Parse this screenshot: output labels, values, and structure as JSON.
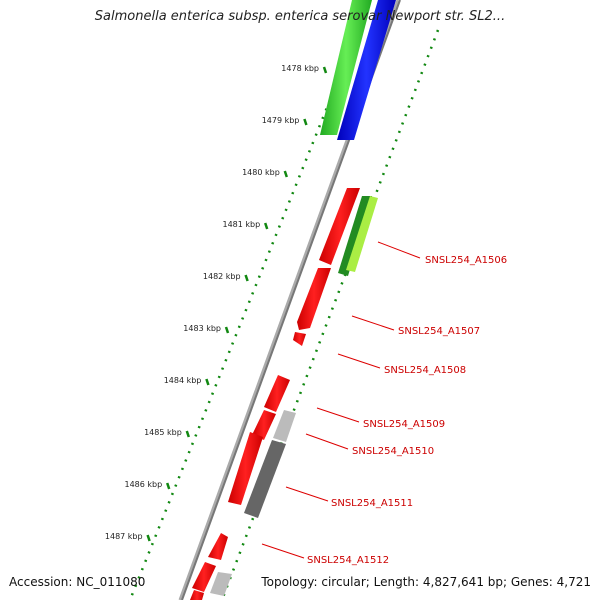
{
  "title": "Salmonella enterica subsp. enterica serovar Newport str. SL2...",
  "footer": {
    "accession": "Accession: NC_011080",
    "summary": "Topology: circular; Length: 4,827,641 bp; Genes: 4,721"
  },
  "colors": {
    "cds_red": "#ee0000",
    "green": "#33cc33",
    "blue": "#0000ee",
    "dark_green": "#228b22",
    "light_green": "#aaee44",
    "gray_light": "#bbbbbb",
    "gray_dark": "#666666",
    "backbone": "#888888",
    "tick_green": "#118811"
  },
  "scale": {
    "unit": "kbp",
    "ticks": [
      {
        "value": 1478,
        "label": "1478 kbp"
      },
      {
        "value": 1479,
        "label": "1479 kbp"
      },
      {
        "value": 1480,
        "label": "1480 kbp"
      },
      {
        "value": 1481,
        "label": "1481 kbp"
      },
      {
        "value": 1482,
        "label": "1482 kbp"
      },
      {
        "value": 1483,
        "label": "1483 kbp"
      },
      {
        "value": 1484,
        "label": "1484 kbp"
      },
      {
        "value": 1485,
        "label": "1485 kbp"
      },
      {
        "value": 1486,
        "label": "1486 kbp"
      },
      {
        "value": 1487,
        "label": "1487 kbp"
      }
    ]
  },
  "gene_labels": [
    {
      "name": "SNSL254_A1506",
      "text": "SNSL254_A1506"
    },
    {
      "name": "SNSL254_A1507",
      "text": "SNSL254_A1507"
    },
    {
      "name": "SNSL254_A1508",
      "text": "SNSL254_A1508"
    },
    {
      "name": "SNSL254_A1509",
      "text": "SNSL254_A1509"
    },
    {
      "name": "SNSL254_A1510",
      "text": "SNSL254_A1510"
    },
    {
      "name": "SNSL254_A1511",
      "text": "SNSL254_A1511"
    },
    {
      "name": "SNSL254_A1512",
      "text": "SNSL254_A1512"
    }
  ]
}
